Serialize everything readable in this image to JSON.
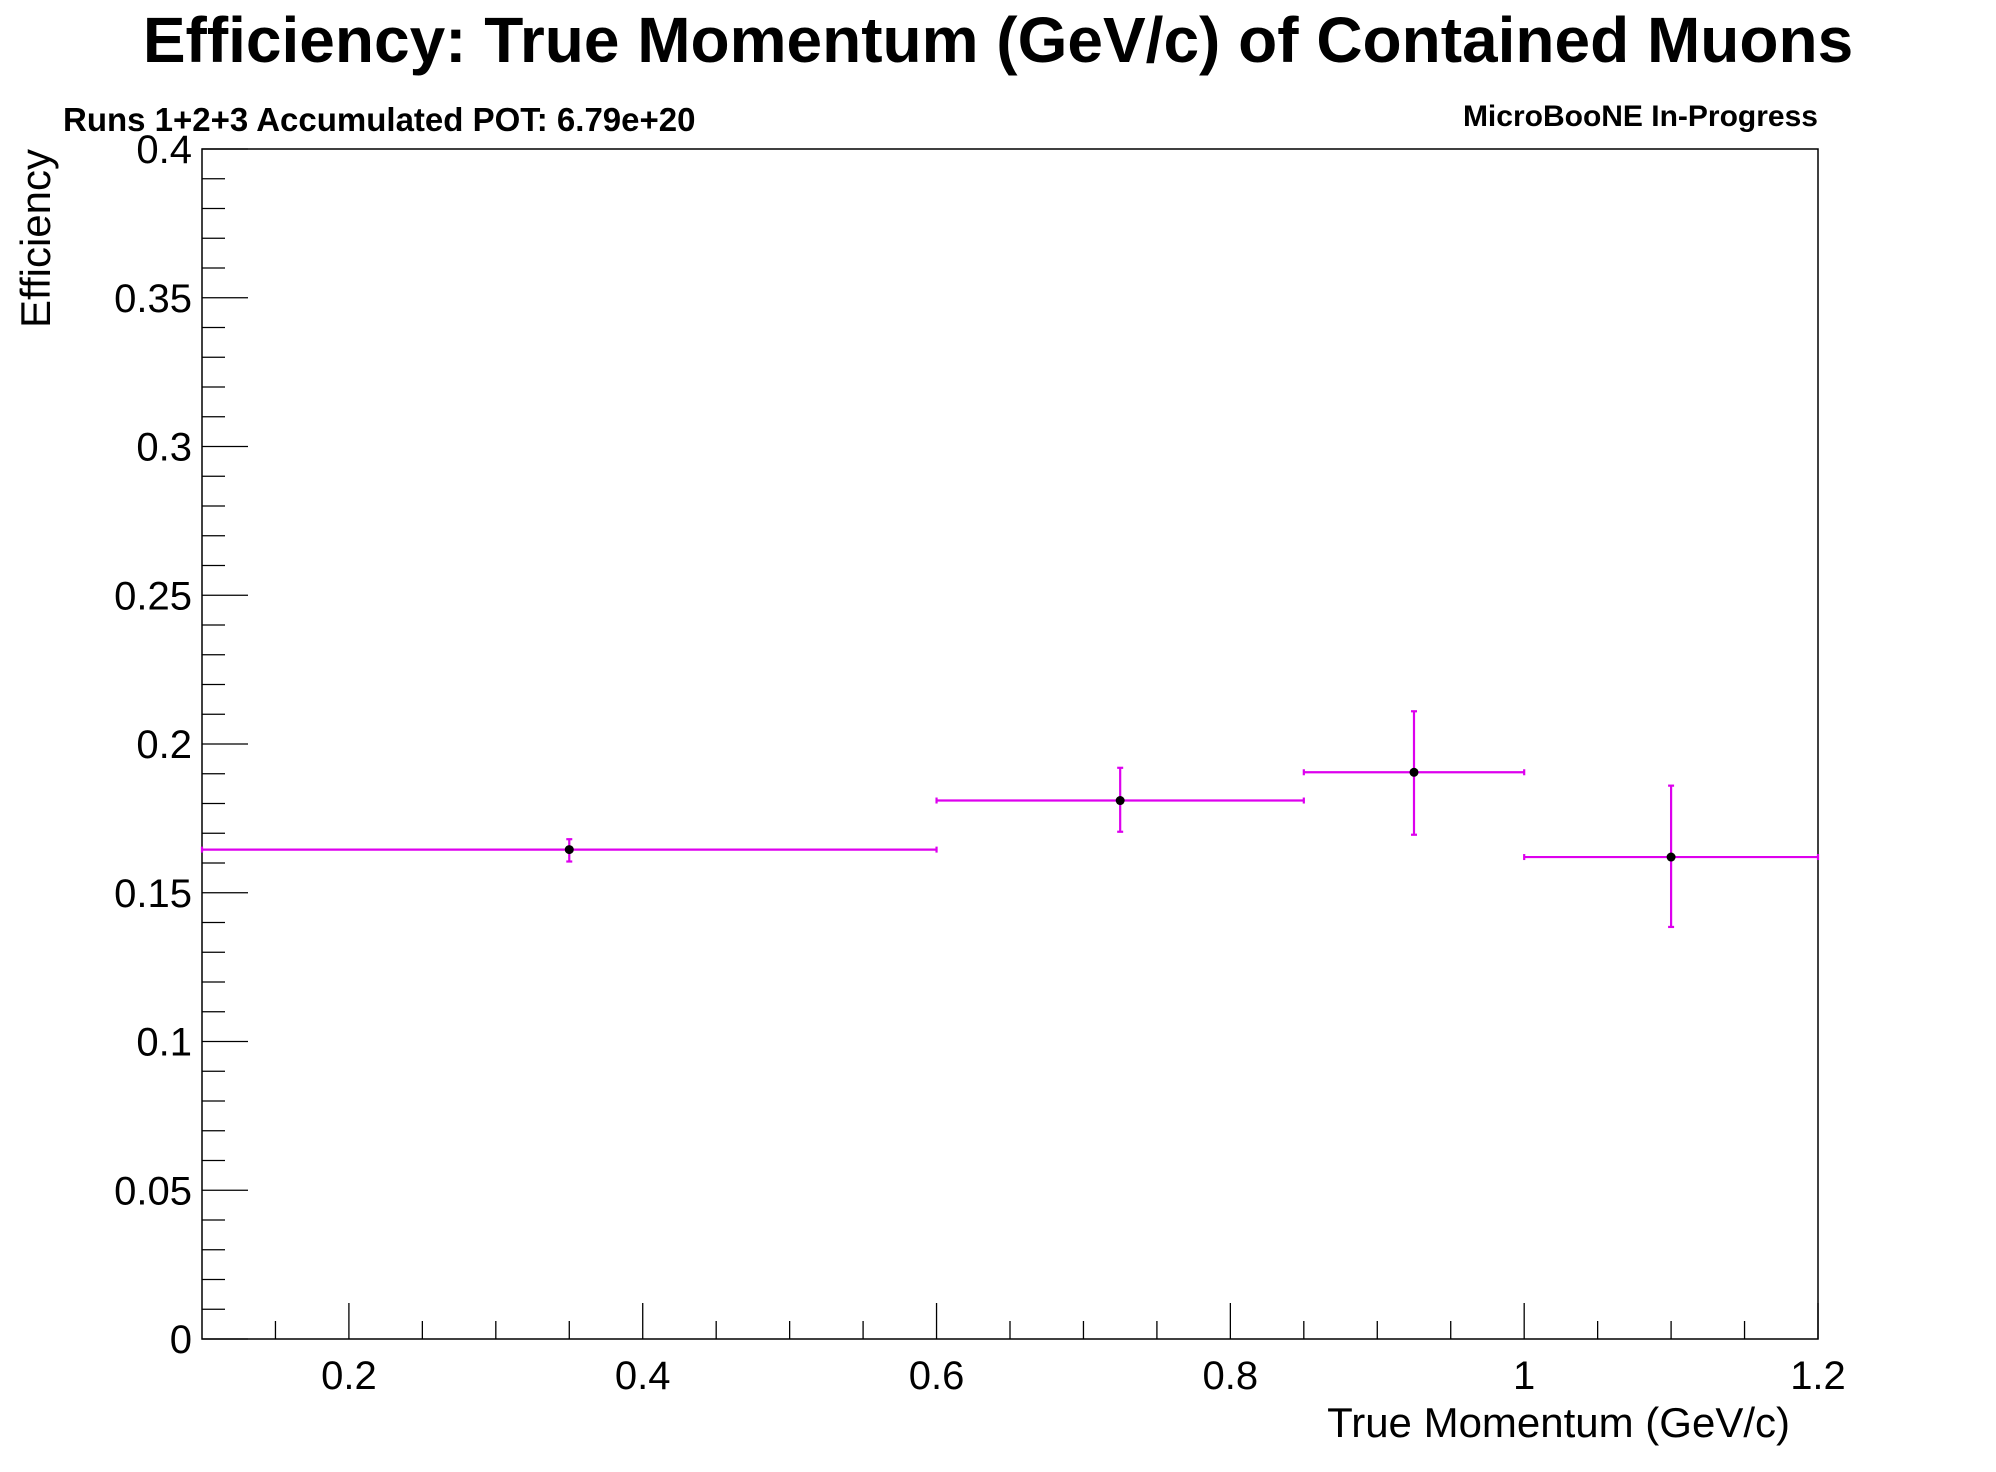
{
  "chart_data": {
    "type": "scatter",
    "title": "Efficiency: True Momentum (GeV/c) of Contained Muons",
    "subtitle": "Runs 1+2+3 Accumulated POT: 6.79e+20",
    "tag": "MicroBooNE In-Progress",
    "xlabel": "True Momentum (GeV/c)",
    "ylabel": "Efficiency",
    "xlim": [
      0.1,
      1.2
    ],
    "ylim": [
      0,
      0.4
    ],
    "xticks": [
      0.2,
      0.4,
      0.6,
      0.8,
      1.0,
      1.2
    ],
    "xtick_labels": [
      "0.2",
      "0.4",
      "0.6",
      "0.8",
      "1",
      "1.2"
    ],
    "yticks": [
      0,
      0.05,
      0.1,
      0.15,
      0.2,
      0.25,
      0.3,
      0.35,
      0.4
    ],
    "ytick_labels": [
      "0",
      "0.05",
      "0.1",
      "0.15",
      "0.2",
      "0.25",
      "0.3",
      "0.35",
      "0.4"
    ],
    "grid": false,
    "error_color": "#dd00ee",
    "marker_color": "#000000",
    "points": [
      {
        "x": 0.35,
        "y": 0.1645,
        "xlow": 0.1,
        "xhigh": 0.6,
        "ylow": 0.1605,
        "yhigh": 0.168
      },
      {
        "x": 0.725,
        "y": 0.181,
        "xlow": 0.6,
        "xhigh": 0.85,
        "ylow": 0.1705,
        "yhigh": 0.192
      },
      {
        "x": 0.925,
        "y": 0.1905,
        "xlow": 0.85,
        "xhigh": 1.0,
        "ylow": 0.1695,
        "yhigh": 0.211
      },
      {
        "x": 1.1,
        "y": 0.162,
        "xlow": 1.0,
        "xhigh": 1.2,
        "ylow": 0.1385,
        "yhigh": 0.186
      }
    ]
  }
}
